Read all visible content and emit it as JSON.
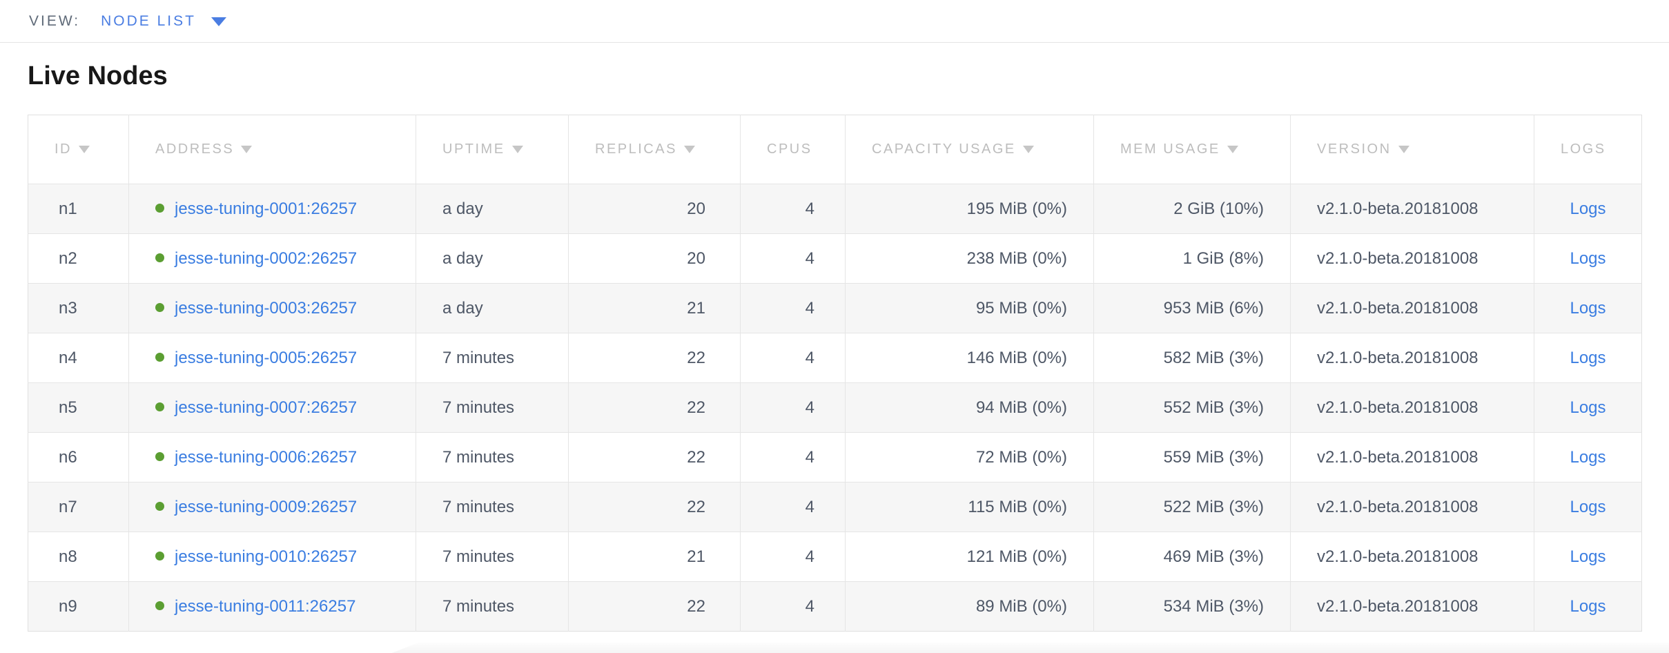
{
  "view_bar": {
    "label": "VIEW:",
    "selected": "NODE LIST"
  },
  "page": {
    "title": "Live Nodes"
  },
  "table": {
    "columns": [
      {
        "label": "ID",
        "field": "id",
        "sortable": true
      },
      {
        "label": "ADDRESS",
        "field": "address",
        "sortable": true
      },
      {
        "label": "UPTIME",
        "field": "uptime",
        "sortable": true
      },
      {
        "label": "REPLICAS",
        "field": "replicas",
        "sortable": true
      },
      {
        "label": "CPUS",
        "field": "cpus",
        "sortable": false
      },
      {
        "label": "CAPACITY USAGE",
        "field": "capacity",
        "sortable": true
      },
      {
        "label": "MEM USAGE",
        "field": "mem",
        "sortable": true
      },
      {
        "label": "VERSION",
        "field": "version",
        "sortable": true
      },
      {
        "label": "LOGS",
        "field": "logs",
        "sortable": false
      }
    ],
    "rows": [
      {
        "id": "n1",
        "address": "jesse-tuning-0001:26257",
        "uptime": "a day",
        "replicas": "20",
        "cpus": "4",
        "capacity": "195 MiB (0%)",
        "mem": "2 GiB (10%)",
        "version": "v2.1.0-beta.20181008",
        "logs": "Logs"
      },
      {
        "id": "n2",
        "address": "jesse-tuning-0002:26257",
        "uptime": "a day",
        "replicas": "20",
        "cpus": "4",
        "capacity": "238 MiB (0%)",
        "mem": "1 GiB (8%)",
        "version": "v2.1.0-beta.20181008",
        "logs": "Logs"
      },
      {
        "id": "n3",
        "address": "jesse-tuning-0003:26257",
        "uptime": "a day",
        "replicas": "21",
        "cpus": "4",
        "capacity": "95 MiB (0%)",
        "mem": "953 MiB (6%)",
        "version": "v2.1.0-beta.20181008",
        "logs": "Logs"
      },
      {
        "id": "n4",
        "address": "jesse-tuning-0005:26257",
        "uptime": "7 minutes",
        "replicas": "22",
        "cpus": "4",
        "capacity": "146 MiB (0%)",
        "mem": "582 MiB (3%)",
        "version": "v2.1.0-beta.20181008",
        "logs": "Logs"
      },
      {
        "id": "n5",
        "address": "jesse-tuning-0007:26257",
        "uptime": "7 minutes",
        "replicas": "22",
        "cpus": "4",
        "capacity": "94 MiB (0%)",
        "mem": "552 MiB (3%)",
        "version": "v2.1.0-beta.20181008",
        "logs": "Logs"
      },
      {
        "id": "n6",
        "address": "jesse-tuning-0006:26257",
        "uptime": "7 minutes",
        "replicas": "22",
        "cpus": "4",
        "capacity": "72 MiB (0%)",
        "mem": "559 MiB (3%)",
        "version": "v2.1.0-beta.20181008",
        "logs": "Logs"
      },
      {
        "id": "n7",
        "address": "jesse-tuning-0009:26257",
        "uptime": "7 minutes",
        "replicas": "22",
        "cpus": "4",
        "capacity": "115 MiB (0%)",
        "mem": "522 MiB (3%)",
        "version": "v2.1.0-beta.20181008",
        "logs": "Logs"
      },
      {
        "id": "n8",
        "address": "jesse-tuning-0010:26257",
        "uptime": "7 minutes",
        "replicas": "21",
        "cpus": "4",
        "capacity": "121 MiB (0%)",
        "mem": "469 MiB (3%)",
        "version": "v2.1.0-beta.20181008",
        "logs": "Logs"
      },
      {
        "id": "n9",
        "address": "jesse-tuning-0011:26257",
        "uptime": "7 minutes",
        "replicas": "22",
        "cpus": "4",
        "capacity": "89 MiB (0%)",
        "mem": "534 MiB (3%)",
        "version": "v2.1.0-beta.20181008",
        "logs": "Logs"
      }
    ]
  },
  "icons": {
    "view_dropdown_caret": "caret-down-icon",
    "sort_indicator": "sort-desc-arrow-icon",
    "node_status": "status-dot-icon"
  },
  "colors": {
    "accent": "#4a7de2",
    "link": "#3a7de1",
    "node_status_green": "#5b9e32",
    "header_text": "#bdbdbd",
    "cell_text": "#4e5766",
    "alt_row_bg": "#f6f6f6",
    "border": "#e5e5e5"
  }
}
